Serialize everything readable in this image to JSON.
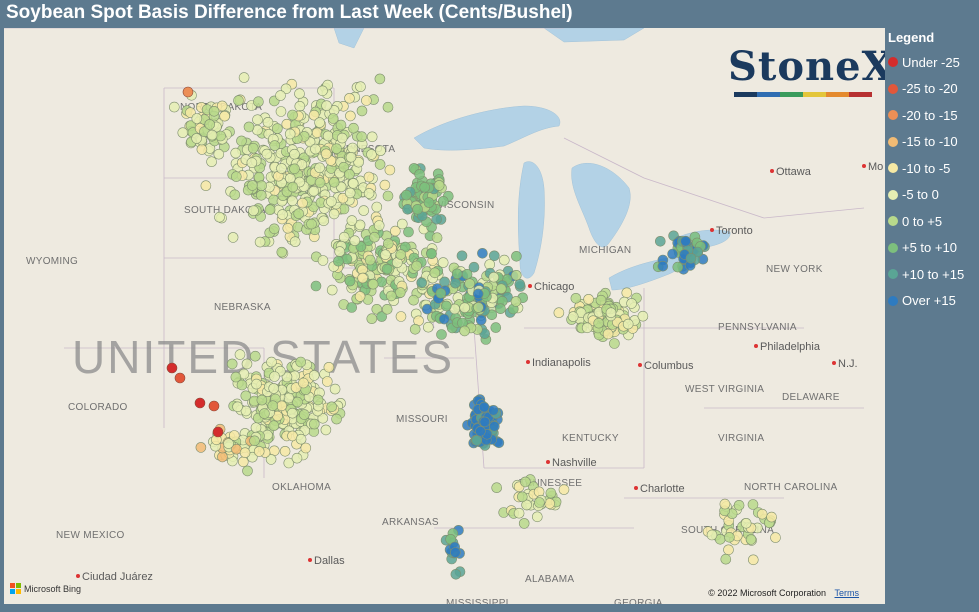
{
  "title": "Soybean Spot Basis Difference from Last Week (Cents/Bushel)",
  "legend": {
    "title": "Legend",
    "items": [
      {
        "label": "Under -25",
        "color": "#d42c2c"
      },
      {
        "label": "-25 to -20",
        "color": "#e2573a"
      },
      {
        "label": "-20 to -15",
        "color": "#ec8f56"
      },
      {
        "label": "-15 to -10",
        "color": "#f2bb74"
      },
      {
        "label": "-10 to -5",
        "color": "#f6e9a4"
      },
      {
        "label": "-5 to 0",
        "color": "#e5eeb3"
      },
      {
        "label": "0 to +5",
        "color": "#b8d98b"
      },
      {
        "label": "+5 to +10",
        "color": "#7dbf7d"
      },
      {
        "label": "+10 to +15",
        "color": "#5aa595"
      },
      {
        "label": "Over +15",
        "color": "#2e7bc0"
      }
    ]
  },
  "brand": {
    "name": "StoneX",
    "stripe_colors": [
      "#1b3a5e",
      "#2f6db2",
      "#3a9b5c",
      "#e3c63b",
      "#e48a2e",
      "#b73131"
    ]
  },
  "map": {
    "country_label": "UNITED STATES",
    "states": [
      "NORTH DAKOTA",
      "SOUTH DAKOTA",
      "MINNESOTA",
      "WISCONSIN",
      "MICHIGAN",
      "NEBRASKA",
      "WYOMING",
      "COLORADO",
      "MISSOURI",
      "OKLAHOMA",
      "ARKANSAS",
      "KENTUCKY",
      "TENNESSEE",
      "WEST VIRGINIA",
      "VIRGINIA",
      "PENNSYLVANIA",
      "NEW YORK",
      "NORTH CAROLINA",
      "SOUTH CAROLINA",
      "ALABAMA",
      "DELAWARE",
      "NEW MEXICO",
      "MISSISSIPPI",
      "GEORGIA"
    ],
    "cities": [
      "Ottawa",
      "Toronto",
      "Chicago",
      "Indianapolis",
      "Columbus",
      "Philadelphia",
      "Nashville",
      "Charlotte",
      "Dallas",
      "Ciudad Juárez",
      "N.J.",
      "Mo"
    ],
    "attribution": "© 2022 Microsoft Corporation",
    "terms": "Terms",
    "bing": "Microsoft Bing"
  }
}
